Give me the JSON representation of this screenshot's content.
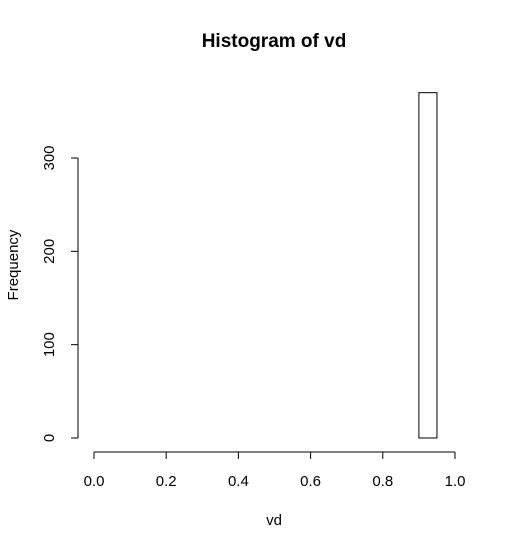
{
  "chart_data": {
    "type": "bar",
    "title": "Histogram of vd",
    "xlabel": "vd",
    "ylabel": "Frequency",
    "xlim": [
      0.0,
      1.0
    ],
    "ylim": [
      0,
      370
    ],
    "x_ticks": [
      "0.0",
      "0.2",
      "0.4",
      "0.6",
      "0.8",
      "1.0"
    ],
    "y_ticks": [
      "0",
      "100",
      "200",
      "300"
    ],
    "bin_width": 0.05,
    "bins": [
      {
        "start": 0.0,
        "end": 0.05,
        "count": 0
      },
      {
        "start": 0.05,
        "end": 0.1,
        "count": 0
      },
      {
        "start": 0.1,
        "end": 0.15,
        "count": 0
      },
      {
        "start": 0.15,
        "end": 0.2,
        "count": 0
      },
      {
        "start": 0.2,
        "end": 0.25,
        "count": 0
      },
      {
        "start": 0.25,
        "end": 0.3,
        "count": 0
      },
      {
        "start": 0.3,
        "end": 0.35,
        "count": 0
      },
      {
        "start": 0.35,
        "end": 0.4,
        "count": 0
      },
      {
        "start": 0.4,
        "end": 0.45,
        "count": 0
      },
      {
        "start": 0.45,
        "end": 0.5,
        "count": 0
      },
      {
        "start": 0.5,
        "end": 0.55,
        "count": 0
      },
      {
        "start": 0.55,
        "end": 0.6,
        "count": 0
      },
      {
        "start": 0.6,
        "end": 0.65,
        "count": 0
      },
      {
        "start": 0.65,
        "end": 0.7,
        "count": 0
      },
      {
        "start": 0.7,
        "end": 0.75,
        "count": 0
      },
      {
        "start": 0.75,
        "end": 0.8,
        "count": 0
      },
      {
        "start": 0.8,
        "end": 0.85,
        "count": 0
      },
      {
        "start": 0.85,
        "end": 0.9,
        "count": 0
      },
      {
        "start": 0.9,
        "end": 0.95,
        "count": 370
      },
      {
        "start": 0.95,
        "end": 1.0,
        "count": 0
      }
    ],
    "grid": false,
    "bar_fill": "#ffffff",
    "bar_stroke": "#000000"
  }
}
